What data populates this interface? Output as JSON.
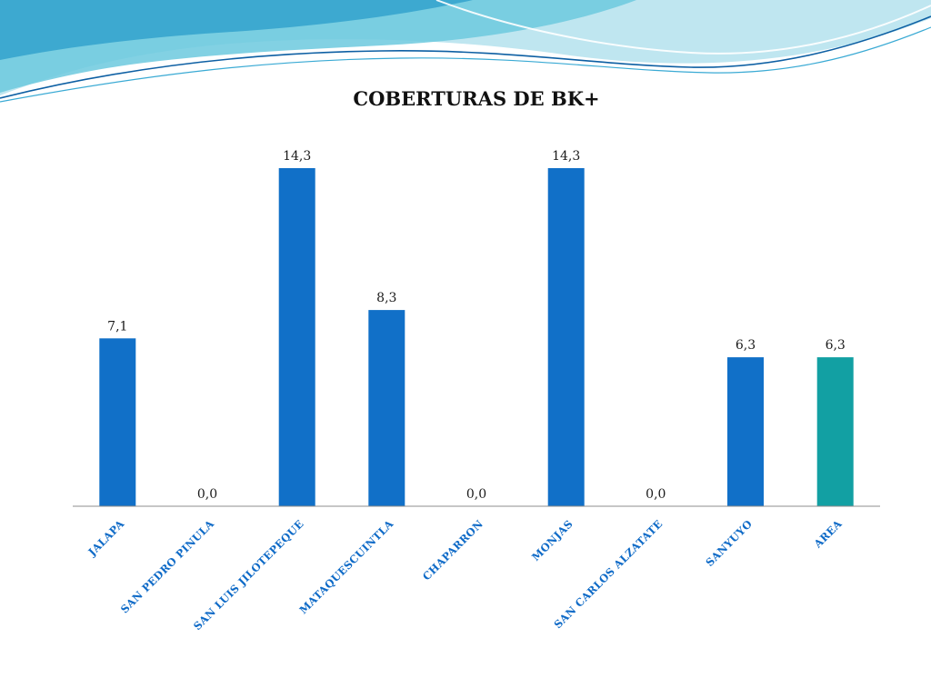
{
  "slide": {
    "theme_colors": {
      "wave_light": "#bfe6f0",
      "wave_mid": "#58c4dc",
      "wave_dark": "#1a86b8",
      "wave_line": "#0d5fa3"
    }
  },
  "chart_data": {
    "type": "bar",
    "title": "COBERTURAS DE BK+",
    "xlabel": "",
    "ylabel": "",
    "ylim": [
      0,
      14.3
    ],
    "grid": false,
    "legend": "none",
    "categories": [
      "JALAPA",
      "SAN PEDRO PINULA",
      "SAN LUIS JILOTEPEQUE",
      "MATAQUESCUINTLA",
      "CHAPARRON",
      "MONJAS",
      "SAN CARLOS ALZATATE",
      "SANYUYO",
      "AREA"
    ],
    "values": [
      7.1,
      0.0,
      14.3,
      8.3,
      0.0,
      14.3,
      0.0,
      6.3,
      6.3
    ],
    "data_labels": [
      "7,1",
      "0,0",
      "14,3",
      "8,3",
      "0,0",
      "14,3",
      "0,0",
      "6,3",
      "6,3"
    ],
    "bar_colors": [
      "#1170c8",
      "#1170c8",
      "#1170c8",
      "#1170c8",
      "#1170c8",
      "#1170c8",
      "#1170c8",
      "#1170c8",
      "#12a0a3"
    ],
    "label_color": "#0e6ac7",
    "axis_color": "#8c8c8c"
  }
}
